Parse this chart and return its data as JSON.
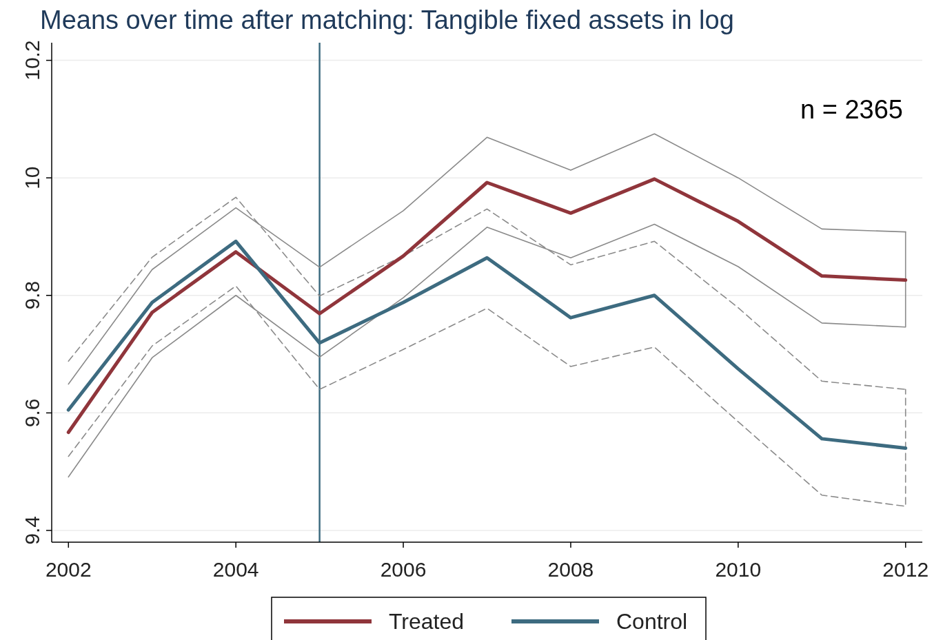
{
  "chart_data": {
    "type": "line",
    "title": "Means over time after matching: Tangible fixed assets in log",
    "x": [
      2002,
      2003,
      2004,
      2005,
      2006,
      2007,
      2008,
      2009,
      2010,
      2011,
      2012
    ],
    "series": [
      {
        "color": "#8a8a8a",
        "line_style": "solid",
        "values": [
          9.649,
          9.844,
          9.949,
          9.848,
          9.944,
          10.069,
          10.013,
          10.075,
          10.0,
          9.913,
          9.908
        ]
      },
      {
        "color": "#8a8a8a",
        "line_style": "solid",
        "x": [
          2002,
          2003,
          2004,
          2005,
          2006,
          2007,
          2008,
          2009,
          2010,
          2011,
          2012,
          2012
        ],
        "values": [
          9.491,
          9.694,
          9.8,
          9.695,
          9.796,
          9.916,
          9.864,
          9.921,
          9.849,
          9.753,
          9.746,
          9.908
        ]
      },
      {
        "color": "#8a8a8a",
        "line_style": "dashed",
        "values": [
          9.688,
          9.865,
          9.967,
          9.799,
          9.867,
          9.947,
          9.852,
          9.892,
          9.779,
          9.654,
          9.64
        ]
      },
      {
        "color": "#8a8a8a",
        "line_style": "dashed",
        "x": [
          2002,
          2003,
          2004,
          2005,
          2006,
          2007,
          2008,
          2009,
          2010,
          2011,
          2012,
          2012
        ],
        "values": [
          9.526,
          9.714,
          9.816,
          9.64,
          9.708,
          9.778,
          9.679,
          9.712,
          9.585,
          9.46,
          9.441,
          9.64
        ]
      },
      {
        "name": "Treated",
        "color": "#90353b",
        "values": [
          9.567,
          9.771,
          9.874,
          9.769,
          9.867,
          9.992,
          9.94,
          9.998,
          9.926,
          9.833,
          9.826
        ]
      },
      {
        "name": "Control",
        "color": "#3d6b80",
        "values": [
          9.605,
          9.788,
          9.892,
          9.719,
          9.788,
          9.864,
          9.762,
          9.8,
          9.675,
          9.556,
          9.54
        ]
      }
    ],
    "xlim": [
      2001.8,
      2012.2
    ],
    "ylim": [
      9.38,
      10.23
    ],
    "xticks": [
      2002,
      2004,
      2006,
      2008,
      2010,
      2012
    ],
    "yticks": [
      {
        "value": 9.4,
        "label": "9.4"
      },
      {
        "value": 9.6,
        "label": "9.6"
      },
      {
        "value": 9.8,
        "label": "9.8"
      },
      {
        "value": 10,
        "label": "10"
      },
      {
        "value": 10.2,
        "label": "10.2"
      }
    ],
    "ref_lines": [
      {
        "axis": "x",
        "value": 2005,
        "color": "#3d6b80"
      }
    ],
    "annotations": [
      "n = 2365"
    ],
    "grid": "y",
    "legend": "bottom",
    "line_style": "solid",
    "marker": "none"
  }
}
